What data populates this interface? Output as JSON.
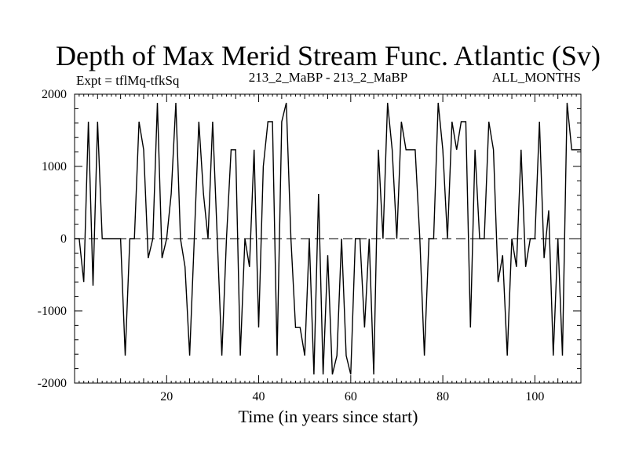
{
  "chart_data": {
    "type": "line",
    "title": "Depth of Max Merid Stream Func. Atlantic (Sv)",
    "subtitle_left": "Expt = tflMq-tfkSq",
    "subtitle_center": "213_2_MaBP - 213_2_MaBP",
    "subtitle_right": "ALL_MONTHS",
    "xlabel": "Time (in years since start)",
    "ylabel": "",
    "xlim": [
      0,
      110
    ],
    "ylim": [
      -2000,
      2000
    ],
    "x_ticks": [
      20,
      40,
      60,
      80,
      100
    ],
    "y_ticks": [
      2000,
      1000,
      0,
      -1000,
      -2000
    ],
    "x_tick_labels": [
      "20",
      "40",
      "60",
      "80",
      "100"
    ],
    "y_tick_labels": [
      "2000",
      "1000",
      "0",
      "-1000",
      "-2000"
    ],
    "zero_line": "dashed",
    "x": [
      0,
      1,
      2,
      3,
      4,
      5,
      6,
      7,
      8,
      9,
      10,
      11,
      12,
      13,
      14,
      15,
      16,
      17,
      18,
      19,
      20,
      21,
      22,
      23,
      24,
      25,
      26,
      27,
      28,
      29,
      30,
      31,
      32,
      33,
      34,
      35,
      36,
      37,
      38,
      39,
      40,
      41,
      42,
      43,
      44,
      45,
      46,
      47,
      48,
      49,
      50,
      51,
      52,
      53,
      54,
      55,
      56,
      57,
      58,
      59,
      60,
      61,
      62,
      63,
      64,
      65,
      66,
      67,
      68,
      69,
      70,
      71,
      72,
      73,
      74,
      75,
      76,
      77,
      78,
      79,
      80,
      81,
      82,
      83,
      84,
      85,
      86,
      87,
      88,
      89,
      90,
      91,
      92,
      93,
      94,
      95,
      96,
      97,
      98,
      99,
      100,
      101,
      102,
      103,
      104,
      105,
      106,
      107,
      108,
      109,
      110
    ],
    "values": [
      0,
      0,
      -600,
      1620,
      -650,
      1620,
      0,
      0,
      0,
      0,
      0,
      -1620,
      0,
      0,
      1620,
      1230,
      -270,
      0,
      1880,
      -270,
      0,
      620,
      1880,
      0,
      -390,
      -1620,
      0,
      1620,
      620,
      0,
      1620,
      0,
      -1620,
      0,
      1230,
      1230,
      -1620,
      0,
      -390,
      1230,
      -1230,
      1000,
      1620,
      1620,
      -1620,
      1620,
      1880,
      0,
      -1230,
      -1230,
      -1620,
      0,
      -1880,
      620,
      -1880,
      -230,
      -1880,
      -1620,
      0,
      -1620,
      -1880,
      0,
      0,
      -1230,
      0,
      -1880,
      1230,
      0,
      1880,
      1230,
      0,
      1620,
      1230,
      1230,
      1230,
      0,
      -1620,
      0,
      0,
      1880,
      1230,
      0,
      1620,
      1230,
      1620,
      1620,
      -1230,
      1230,
      0,
      0,
      1620,
      1230,
      -600,
      -230,
      -1620,
      0,
      -390,
      1230,
      -390,
      0,
      0,
      1620,
      -270,
      390,
      -1620,
      0,
      -1620,
      1880,
      1230,
      1230,
      1230
    ]
  }
}
